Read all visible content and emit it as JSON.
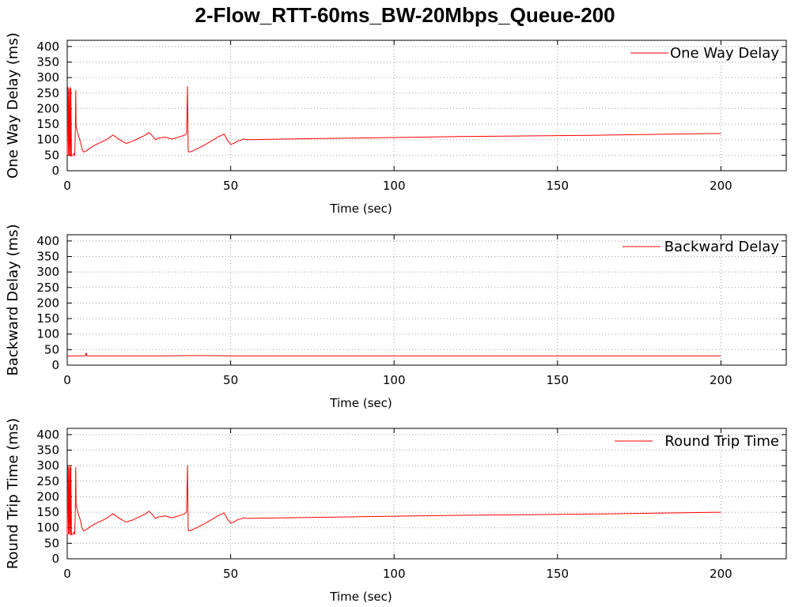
{
  "title": "2-Flow_RTT-60ms_BW-20Mbps_Queue-200",
  "colors": {
    "series": "#ff0000",
    "grid": "#a0a0a0",
    "axis": "#000000"
  },
  "chart_data": [
    {
      "type": "line",
      "xlabel": "Time (sec)",
      "ylabel": "One Way Delay (ms)",
      "xlim": [
        0,
        220
      ],
      "ylim": [
        0,
        420
      ],
      "xticks": [
        0,
        50,
        100,
        150,
        200
      ],
      "yticks": [
        0,
        50,
        100,
        150,
        200,
        250,
        300,
        350,
        400
      ],
      "grid": true,
      "legend_position": "top-right",
      "series": [
        {
          "name": "One Way Delay",
          "color": "#ff0000",
          "x": [
            0,
            0.2,
            0.4,
            0.5,
            0.7,
            0.9,
            1.0,
            1.1,
            1.3,
            1.5,
            1.7,
            2.0,
            2.3,
            2.5,
            2.6,
            2.7,
            3.0,
            3.5,
            4.0,
            4.5,
            5.0,
            6.0,
            8.0,
            10.0,
            12.0,
            14.0,
            16.0,
            18.0,
            20.0,
            22.0,
            24.0,
            25.0,
            26.0,
            27.0,
            28.0,
            30.0,
            32.0,
            34.0,
            36.0,
            36.5,
            36.8,
            37.0,
            37.2,
            38.0,
            40.0,
            42.0,
            44.0,
            46.0,
            48.0,
            49.0,
            50.0,
            51.0,
            52.0,
            53.0,
            54.0,
            55.0,
            60,
            80,
            100,
            120,
            140,
            160,
            180,
            200
          ],
          "y": [
            50,
            270,
            48,
            265,
            50,
            270,
            45,
            265,
            48,
            48,
            50,
            55,
            50,
            140,
            260,
            145,
            130,
            110,
            95,
            70,
            60,
            65,
            80,
            90,
            100,
            115,
            100,
            88,
            95,
            105,
            115,
            123,
            113,
            100,
            105,
            108,
            102,
            108,
            115,
            120,
            272,
            65,
            60,
            62,
            72,
            83,
            95,
            108,
            118,
            98,
            85,
            88,
            95,
            98,
            102,
            100,
            101,
            104,
            107,
            110,
            112,
            114,
            117,
            120
          ]
        }
      ]
    },
    {
      "type": "line",
      "xlabel": "Time (sec)",
      "ylabel": "Backward Delay (ms)",
      "xlim": [
        0,
        220
      ],
      "ylim": [
        0,
        420
      ],
      "xticks": [
        0,
        50,
        100,
        150,
        200
      ],
      "yticks": [
        0,
        50,
        100,
        150,
        200,
        250,
        300,
        350,
        400
      ],
      "grid": true,
      "legend_position": "top-right",
      "series": [
        {
          "name": "Backward Delay",
          "color": "#ff0000",
          "x": [
            0,
            5.5,
            5.8,
            6.0,
            6.3,
            10,
            20,
            30,
            40,
            50,
            55,
            100,
            150,
            200
          ],
          "y": [
            30,
            30,
            40,
            29,
            30,
            30,
            30,
            30,
            31,
            30,
            30,
            30,
            30,
            30
          ]
        }
      ]
    },
    {
      "type": "line",
      "xlabel": "Time (sec)",
      "ylabel": "Round Trip Time (ms)",
      "xlim": [
        0,
        220
      ],
      "ylim": [
        0,
        420
      ],
      "xticks": [
        0,
        50,
        100,
        150,
        200
      ],
      "yticks": [
        0,
        50,
        100,
        150,
        200,
        250,
        300,
        350,
        400
      ],
      "grid": true,
      "legend_position": "top-right",
      "series": [
        {
          "name": "Round Trip Time",
          "color": "#ff0000",
          "x": [
            0,
            0.2,
            0.4,
            0.5,
            0.7,
            0.9,
            1.0,
            1.1,
            1.3,
            1.5,
            1.7,
            2.0,
            2.3,
            2.5,
            2.6,
            2.7,
            3.0,
            3.5,
            4.0,
            4.5,
            5.0,
            6.0,
            8.0,
            10.0,
            12.0,
            14.0,
            16.0,
            18.0,
            20.0,
            22.0,
            24.0,
            25.0,
            26.0,
            27.0,
            28.0,
            30.0,
            32.0,
            34.0,
            36.0,
            36.5,
            36.8,
            37.0,
            37.2,
            38.0,
            40.0,
            42.0,
            44.0,
            46.0,
            48.0,
            49.0,
            50.0,
            51.0,
            52.0,
            53.0,
            54.0,
            55.0,
            60,
            80,
            100,
            120,
            140,
            160,
            180,
            200
          ],
          "y": [
            80,
            300,
            78,
            295,
            80,
            300,
            75,
            295,
            78,
            78,
            80,
            85,
            80,
            170,
            295,
            175,
            160,
            140,
            125,
            100,
            90,
            95,
            110,
            120,
            130,
            145,
            130,
            118,
            125,
            135,
            145,
            153,
            143,
            130,
            135,
            138,
            132,
            138,
            145,
            150,
            302,
            95,
            90,
            92,
            102,
            113,
            125,
            138,
            148,
            128,
            115,
            118,
            125,
            128,
            132,
            130,
            131,
            134,
            137,
            140,
            142,
            144,
            147,
            150
          ]
        }
      ]
    }
  ]
}
